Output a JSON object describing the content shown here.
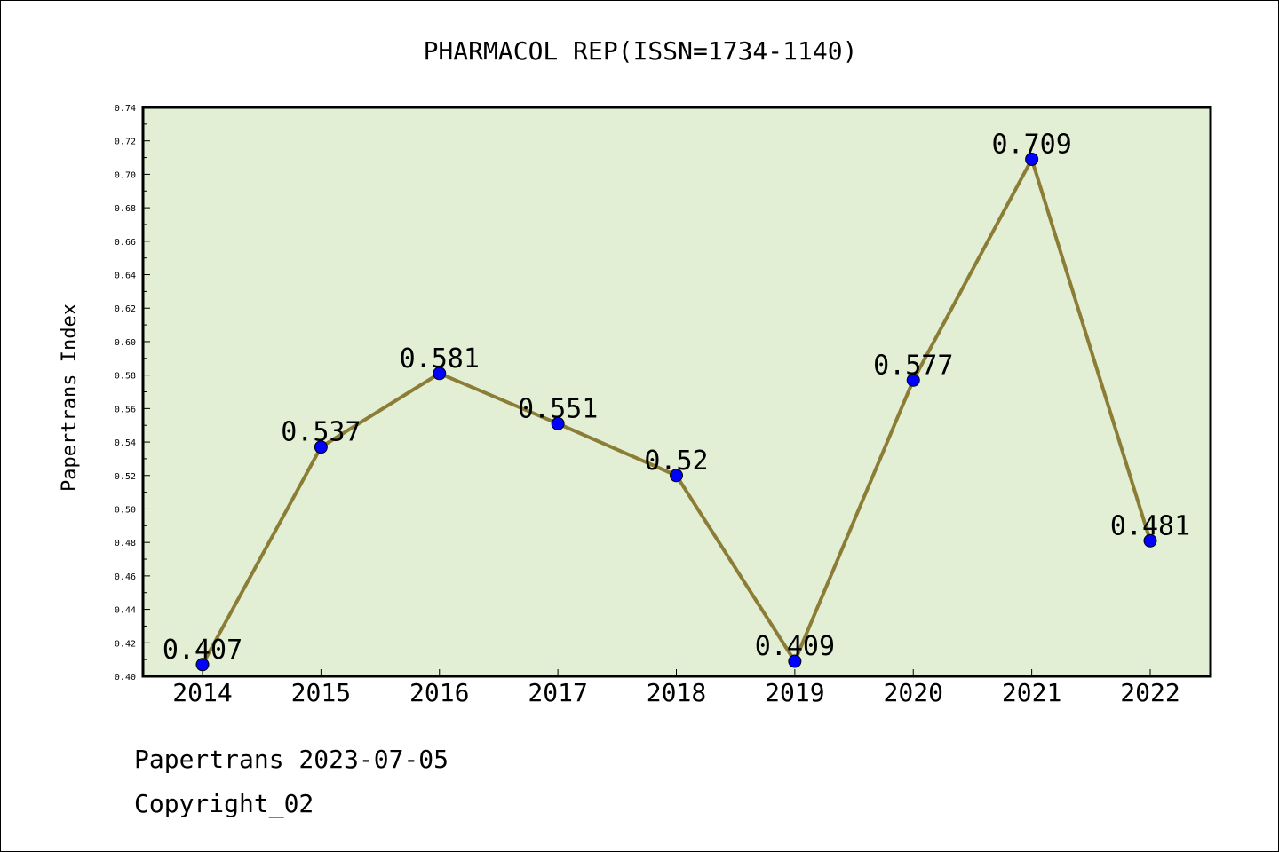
{
  "chart_data": {
    "type": "line",
    "title": "PHARMACOL REP(ISSN=1734-1140)",
    "xlabel": "",
    "ylabel": "Papertrans Index",
    "categories": [
      "2014",
      "2015",
      "2016",
      "2017",
      "2018",
      "2019",
      "2020",
      "2021",
      "2022"
    ],
    "values": [
      0.407,
      0.537,
      0.581,
      0.551,
      0.52,
      0.409,
      0.577,
      0.709,
      0.481
    ],
    "data_labels": [
      "0.407",
      "0.537",
      "0.581",
      "0.551",
      "0.52",
      "0.409",
      "0.577",
      "0.709",
      "0.481"
    ],
    "ylim": [
      0.4,
      0.74
    ],
    "yticks": [
      "0.40",
      "0.42",
      "0.44",
      "0.46",
      "0.48",
      "0.50",
      "0.52",
      "0.54",
      "0.56",
      "0.58",
      "0.60",
      "0.62",
      "0.64",
      "0.66",
      "0.68",
      "0.70",
      "0.72",
      "0.74"
    ],
    "grid": false,
    "colors": {
      "plot_background": "#e2efd5",
      "line": "#8b7d35",
      "marker": "#0000ff"
    }
  },
  "footer": {
    "source": "Papertrans 2023-07-05",
    "copyright": "Copyright_02"
  }
}
